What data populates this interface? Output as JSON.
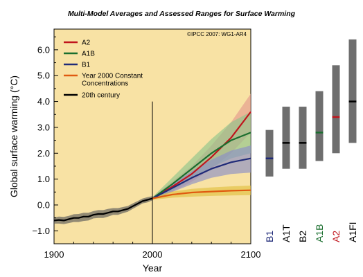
{
  "chart_data": {
    "type": "line",
    "title": "Multi-Model Averages and Assessed Ranges for Surface Warming",
    "copyright": "©IPCC 2007: WG1-AR4",
    "xlabel": "Year",
    "ylabel": "Global surface warming (°C)",
    "xlim": [
      1900,
      2100
    ],
    "ylim": [
      -1.5,
      6.8
    ],
    "x_ticks": [
      "1900",
      "2000",
      "2100"
    ],
    "y_ticks": [
      "−1.0",
      "0.0",
      "1.0",
      "2.0",
      "3.0",
      "4.0",
      "5.0",
      "6.0"
    ],
    "grid": false,
    "legend_position": "top-left",
    "vline_year": 2000,
    "legend": [
      {
        "label": "A2",
        "color": "#c0141c"
      },
      {
        "label": "A1B",
        "color": "#1a6e2e"
      },
      {
        "label": "B1",
        "color": "#1f2a78"
      },
      {
        "label": "Year 2000 Constant Concentrations",
        "color": "#e05a10"
      },
      {
        "label": "20th century",
        "color": "#000000"
      }
    ],
    "series": [
      {
        "name": "20th century",
        "color": "#000000",
        "band_color": "#5a5a5a",
        "x": [
          1900,
          1905,
          1910,
          1915,
          1920,
          1925,
          1930,
          1935,
          1940,
          1945,
          1950,
          1955,
          1960,
          1965,
          1970,
          1975,
          1980,
          1985,
          1990,
          1995,
          2000
        ],
        "values": [
          -0.6,
          -0.58,
          -0.6,
          -0.55,
          -0.5,
          -0.5,
          -0.45,
          -0.45,
          -0.38,
          -0.35,
          -0.35,
          -0.3,
          -0.25,
          -0.25,
          -0.2,
          -0.15,
          -0.05,
          0.05,
          0.15,
          0.2,
          0.25
        ],
        "lower": [
          -0.72,
          -0.72,
          -0.74,
          -0.7,
          -0.66,
          -0.66,
          -0.62,
          -0.6,
          -0.52,
          -0.5,
          -0.5,
          -0.45,
          -0.38,
          -0.38,
          -0.32,
          -0.26,
          -0.15,
          -0.05,
          0.06,
          0.1,
          0.18
        ],
        "upper": [
          -0.48,
          -0.45,
          -0.46,
          -0.42,
          -0.36,
          -0.35,
          -0.3,
          -0.3,
          -0.24,
          -0.2,
          -0.2,
          -0.15,
          -0.12,
          -0.12,
          -0.08,
          -0.04,
          0.06,
          0.15,
          0.25,
          0.3,
          0.34
        ]
      },
      {
        "name": "A2",
        "color": "#c0141c",
        "band_color": "#e39a8e",
        "x": [
          2000,
          2020,
          2040,
          2060,
          2080,
          2100
        ],
        "values": [
          0.25,
          0.7,
          1.2,
          1.85,
          2.6,
          3.6
        ],
        "lower": [
          0.2,
          0.5,
          0.9,
          1.4,
          2.0,
          2.8
        ],
        "upper": [
          0.3,
          0.9,
          1.5,
          2.3,
          3.2,
          4.3
        ]
      },
      {
        "name": "A1B",
        "color": "#1a6e2e",
        "band_color": "#8fc48c",
        "x": [
          2000,
          2020,
          2040,
          2060,
          2080,
          2100
        ],
        "values": [
          0.25,
          0.8,
          1.4,
          2.0,
          2.5,
          2.8
        ],
        "lower": [
          0.2,
          0.55,
          1.0,
          1.45,
          1.8,
          2.0
        ],
        "upper": [
          0.3,
          1.05,
          1.8,
          2.55,
          3.2,
          3.6
        ]
      },
      {
        "name": "B1",
        "color": "#1f2a78",
        "band_color": "#8b8fc6",
        "x": [
          2000,
          2020,
          2040,
          2060,
          2080,
          2100
        ],
        "values": [
          0.25,
          0.65,
          1.05,
          1.4,
          1.65,
          1.8
        ],
        "lower": [
          0.2,
          0.5,
          0.8,
          1.05,
          1.2,
          1.25
        ],
        "upper": [
          0.3,
          0.8,
          1.3,
          1.75,
          2.1,
          2.3
        ]
      },
      {
        "name": "Year 2000 Constant Concentrations",
        "color": "#e05a10",
        "band_color": "#e0c040",
        "x": [
          2000,
          2020,
          2040,
          2060,
          2080,
          2100
        ],
        "values": [
          0.25,
          0.4,
          0.48,
          0.52,
          0.55,
          0.57
        ],
        "lower": [
          0.2,
          0.28,
          0.32,
          0.35,
          0.37,
          0.38
        ],
        "upper": [
          0.3,
          0.52,
          0.62,
          0.68,
          0.72,
          0.75
        ]
      }
    ],
    "ranges": [
      {
        "name": "B1",
        "low": 1.1,
        "high": 2.9,
        "best": 1.8,
        "color": "#1f2a78"
      },
      {
        "name": "A1T",
        "low": 1.4,
        "high": 3.8,
        "best": 2.4,
        "color": "#000000"
      },
      {
        "name": "B2",
        "low": 1.4,
        "high": 3.8,
        "best": 2.4,
        "color": "#000000"
      },
      {
        "name": "A1B",
        "low": 1.7,
        "high": 4.4,
        "best": 2.8,
        "color": "#1a6e2e"
      },
      {
        "name": "A2",
        "low": 2.0,
        "high": 5.4,
        "best": 3.4,
        "color": "#c0141c"
      },
      {
        "name": "A1FI",
        "low": 2.4,
        "high": 6.4,
        "best": 4.0,
        "color": "#000000"
      }
    ]
  }
}
